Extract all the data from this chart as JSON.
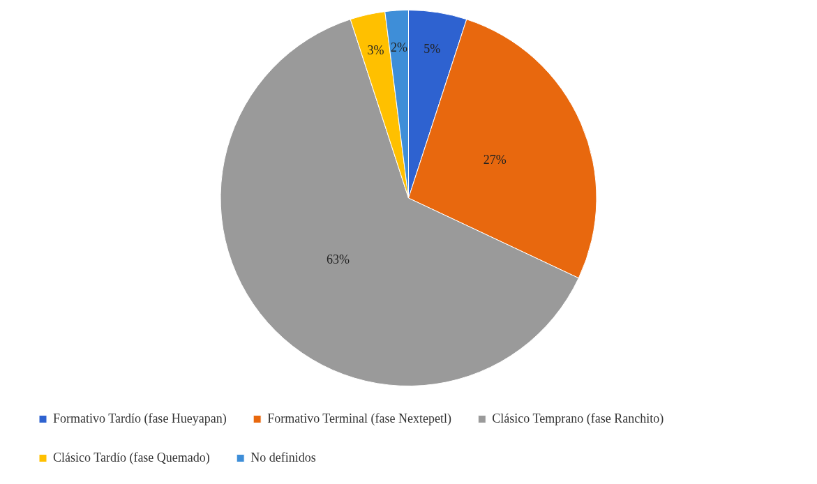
{
  "chart_data": {
    "type": "pie",
    "categories": [
      "Formativo Tardío (fase Hueyapan)",
      "Formativo Terminal (fase Nextepetl)",
      "Clásico Temprano (fase Ranchito)",
      "Clásico Tardío (fase Quemado)",
      "No definidos"
    ],
    "values": [
      5,
      27,
      63,
      3,
      2
    ],
    "colors": [
      "#2e62d0",
      "#e8680e",
      "#9a9a9a",
      "#ffc000",
      "#3e8ed8"
    ],
    "value_labels": [
      "5%",
      "27%",
      "63%",
      "3%",
      "2%"
    ],
    "legend": "bottom"
  }
}
